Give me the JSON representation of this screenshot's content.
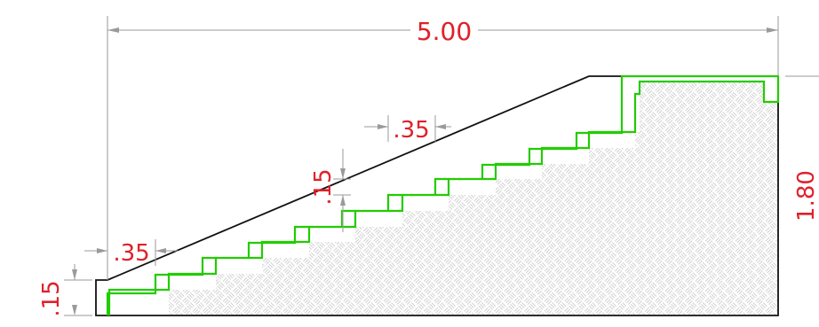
{
  "drawing": {
    "overall_width": "5.00",
    "tread_top": ".35",
    "tread_bottom": ".35",
    "riser_mid": ".15",
    "riser_bottom": ".15",
    "right_height": "1.80"
  },
  "colors": {
    "dimension_text": "#e0202a",
    "dimension_line": "#9a9a9a",
    "outline": "#111111",
    "steps": "#22cc00",
    "hatch": "#c4c4c4"
  }
}
